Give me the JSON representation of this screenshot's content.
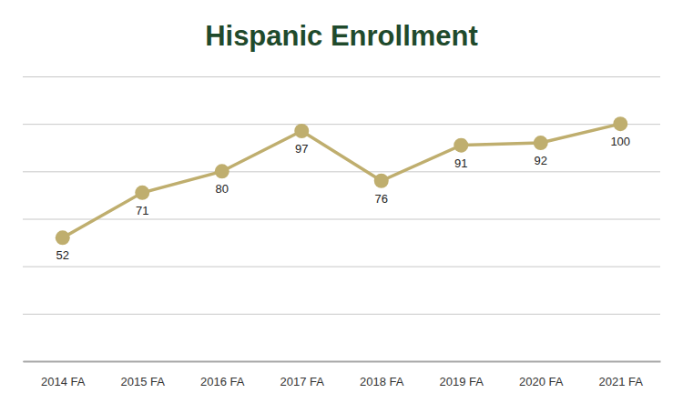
{
  "chart_data": {
    "type": "line",
    "title": "Hispanic Enrollment",
    "categories": [
      "2014 FA",
      "2015 FA",
      "2016 FA",
      "2017 FA",
      "2018 FA",
      "2019 FA",
      "2020 FA",
      "2021 FA"
    ],
    "values": [
      52,
      71,
      80,
      97,
      76,
      91,
      92,
      100
    ],
    "color": "#bfae6e",
    "ylim": [
      0,
      120
    ],
    "yticks": [
      0,
      20,
      40,
      60,
      80,
      100,
      120
    ],
    "grid": true,
    "tick_labels": "x",
    "data_labels": true,
    "marker": "circle"
  }
}
